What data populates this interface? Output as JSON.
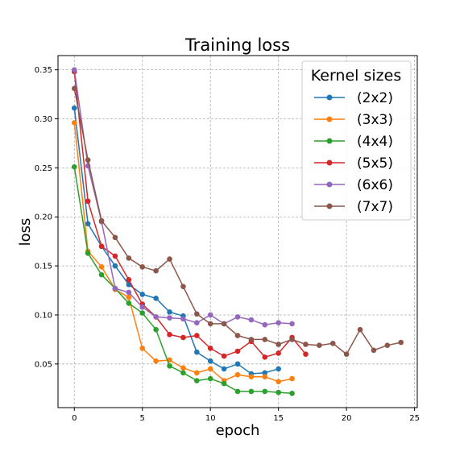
{
  "chart_data": {
    "type": "line",
    "title": "Training loss",
    "xlabel": "epoch",
    "ylabel": "loss",
    "xlim": [
      -1.2,
      25.2
    ],
    "ylim": [
      0.0055,
      0.3645
    ],
    "x_ticks": [
      0,
      5,
      10,
      15,
      20,
      25
    ],
    "y_ticks": [
      0.05,
      0.1,
      0.15,
      0.2,
      0.25,
      0.3,
      0.35
    ],
    "x_tick_labels": [
      "0",
      "5",
      "10",
      "15",
      "20",
      "25"
    ],
    "y_tick_labels": [
      "0.05",
      "0.10",
      "0.15",
      "0.20",
      "0.25",
      "0.30",
      "0.35"
    ],
    "grid": true,
    "legend": {
      "title": "Kernel sizes",
      "position": "top-right"
    },
    "series": [
      {
        "name": "(2x2)",
        "color": "#1f77b4",
        "x": [
          0,
          1,
          2,
          3,
          4,
          5,
          6,
          7,
          8,
          9,
          10,
          11,
          12,
          13,
          14,
          15
        ],
        "y": [
          0.311,
          0.193,
          0.17,
          0.15,
          0.131,
          0.121,
          0.117,
          0.103,
          0.099,
          0.062,
          0.053,
          0.045,
          0.05,
          0.04,
          0.041,
          0.045
        ]
      },
      {
        "name": "(3x3)",
        "color": "#ff7f0e",
        "x": [
          0,
          1,
          2,
          3,
          4,
          5,
          6,
          7,
          8,
          9,
          10,
          11,
          12,
          13,
          14,
          15,
          16
        ],
        "y": [
          0.296,
          0.165,
          0.149,
          0.126,
          0.118,
          0.066,
          0.053,
          0.054,
          0.046,
          0.041,
          0.045,
          0.033,
          0.039,
          0.037,
          0.037,
          0.032,
          0.035
        ]
      },
      {
        "name": "(4x4)",
        "color": "#2ca02c",
        "x": [
          0,
          1,
          2,
          3,
          4,
          5,
          6,
          7,
          8,
          9,
          10,
          11,
          12,
          13,
          14,
          15,
          16
        ],
        "y": [
          0.251,
          0.163,
          0.141,
          0.127,
          0.112,
          0.102,
          0.085,
          0.048,
          0.041,
          0.033,
          0.035,
          0.03,
          0.022,
          0.022,
          0.022,
          0.021,
          0.02
        ]
      },
      {
        "name": "(5x5)",
        "color": "#d62728",
        "x": [
          0,
          1,
          2,
          3,
          4,
          5,
          6,
          7,
          8,
          9,
          10,
          11,
          12,
          13,
          14,
          15,
          16,
          17
        ],
        "y": [
          0.348,
          0.216,
          0.17,
          0.16,
          0.136,
          0.111,
          0.098,
          0.08,
          0.077,
          0.079,
          0.066,
          0.058,
          0.063,
          0.073,
          0.057,
          0.061,
          0.077,
          0.06
        ]
      },
      {
        "name": "(6x6)",
        "color": "#9467bd",
        "x": [
          0,
          1,
          2,
          3,
          4,
          5,
          6,
          7,
          8,
          9,
          10,
          11,
          12,
          13,
          14,
          15,
          16
        ],
        "y": [
          0.35,
          0.252,
          0.195,
          0.127,
          0.123,
          0.108,
          0.098,
          0.097,
          0.096,
          0.092,
          0.1,
          0.091,
          0.098,
          0.095,
          0.09,
          0.092,
          0.091
        ]
      },
      {
        "name": "(7x7)",
        "color": "#8c564b",
        "x": [
          0,
          1,
          2,
          3,
          4,
          5,
          6,
          7,
          8,
          9,
          10,
          11,
          12,
          13,
          14,
          15,
          16,
          17,
          18,
          19,
          20,
          21,
          22,
          23,
          24
        ],
        "y": [
          0.331,
          0.258,
          0.196,
          0.179,
          0.158,
          0.149,
          0.145,
          0.157,
          0.129,
          0.101,
          0.091,
          0.091,
          0.079,
          0.075,
          0.075,
          0.07,
          0.075,
          0.07,
          0.069,
          0.071,
          0.06,
          0.085,
          0.064,
          0.069,
          0.072
        ]
      }
    ]
  }
}
